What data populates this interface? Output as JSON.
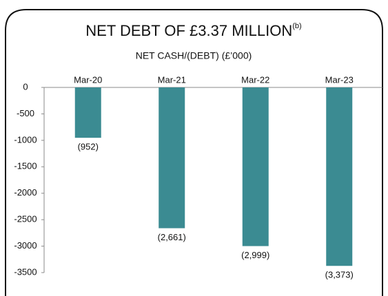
{
  "chart_data": {
    "type": "bar",
    "title": "NET DEBT OF £3.37 MILLION",
    "title_note": "(b)",
    "subtitle": "NET CASH/(DEBT) (£’000)",
    "categories": [
      "Mar-20",
      "Mar-21",
      "Mar-22",
      "Mar-23"
    ],
    "values": [
      -952,
      -2661,
      -2999,
      -3373
    ],
    "value_labels": [
      "(952)",
      "(2,661)",
      "(2,999)",
      "(3,373)"
    ],
    "color": "#3b8b92",
    "ylim": [
      -3500,
      0
    ],
    "yticks": [
      0,
      -500,
      -1000,
      -1500,
      -2000,
      -2500,
      -3000,
      -3500
    ],
    "grid": false
  }
}
